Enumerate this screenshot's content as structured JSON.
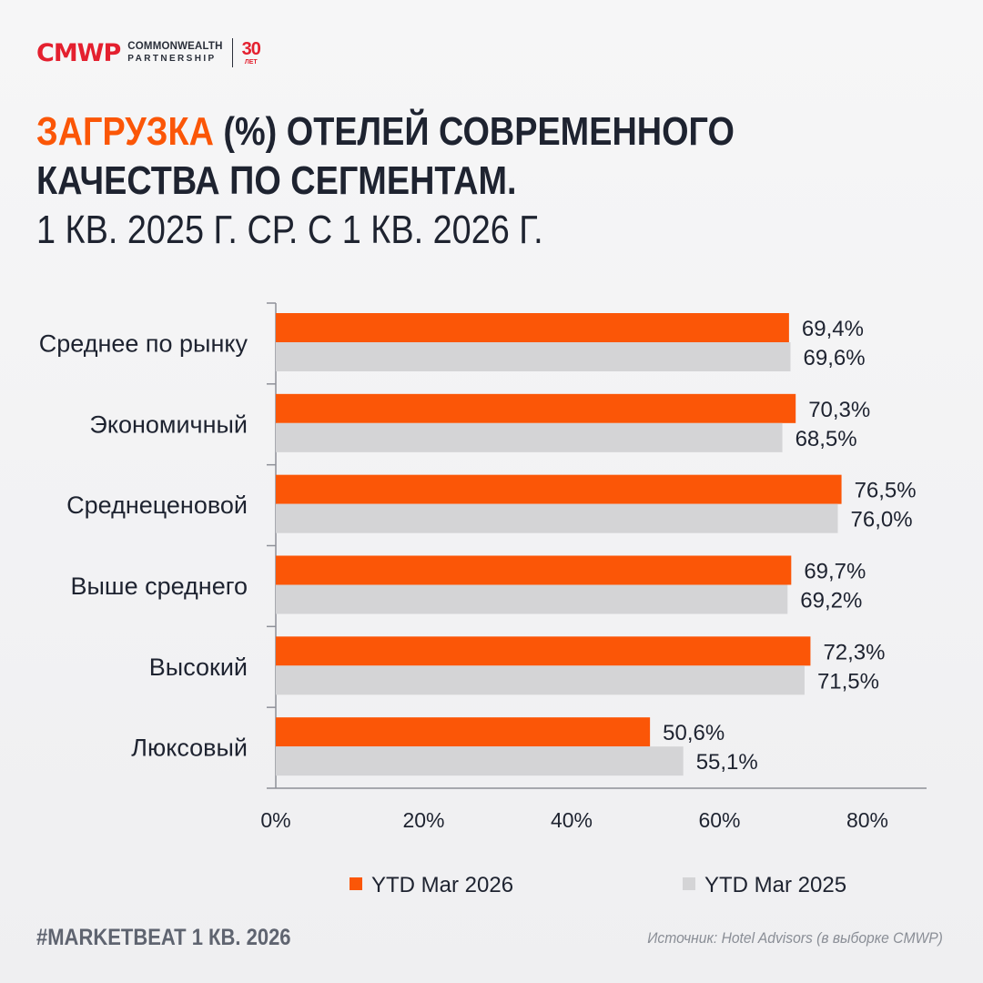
{
  "brand": {
    "mark": "CMWP",
    "name_line1": "COMMONWEALTH",
    "name_line2": "PARTNERSHIP",
    "years_number": "30",
    "years_word": "ЛЕТ"
  },
  "title": {
    "accent": "ЗАГРУЗКА",
    "line1_rest": " (%) ОТЕЛЕЙ  СОВРЕМЕННОГО",
    "line2": "КАЧЕСТВА ПО СЕГМЕНТАМ.",
    "line3": "1 КВ. 2025 Г. СР. С 1 КВ. 2026 Г."
  },
  "chart_data": {
    "type": "bar",
    "orientation": "horizontal",
    "categories": [
      "Среднее по рынку",
      "Экономичный",
      "Среднеценовой",
      "Выше среднего",
      "Высокий",
      "Люксовый"
    ],
    "series": [
      {
        "name": "YTD Mar 2026",
        "color": "#fb5607",
        "values": [
          69.4,
          70.3,
          76.5,
          69.7,
          72.3,
          50.6
        ],
        "labels": [
          "69,4%",
          "70,3%",
          "76,5%",
          "69,7%",
          "72,3%",
          "50,6%"
        ]
      },
      {
        "name": "YTD Mar 2025",
        "color": "#d4d4d6",
        "values": [
          69.6,
          68.5,
          76.0,
          69.2,
          71.5,
          55.1
        ],
        "labels": [
          "69,6%",
          "68,5%",
          "76,0%",
          "69,2%",
          "71,5%",
          "55,1%"
        ]
      }
    ],
    "xlim": [
      0,
      88
    ],
    "xticks": [
      0,
      20,
      40,
      60,
      80
    ],
    "xtick_labels": [
      "0%",
      "20%",
      "40%",
      "60%",
      "80%"
    ],
    "legend_position": "bottom",
    "grid": false
  },
  "footer": {
    "hashtag": "#MARKETBEAT 1 КВ. 2026",
    "source": "Источник: Hotel Advisors (в выборке CMWP)"
  }
}
